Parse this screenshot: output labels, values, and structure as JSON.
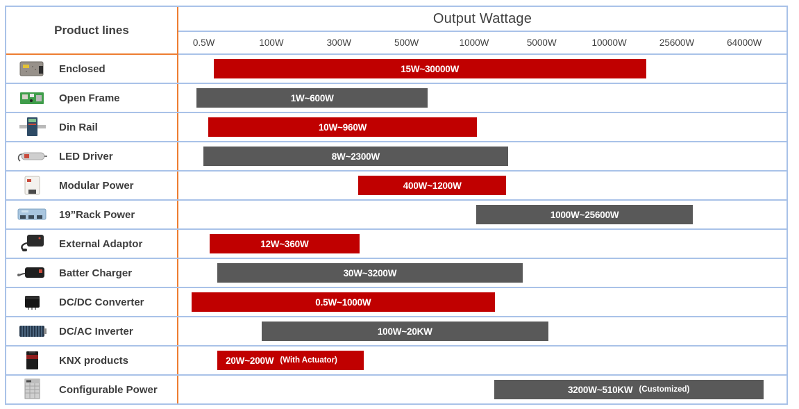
{
  "header": {
    "left_title": "Product lines",
    "right_title": "Output Wattage"
  },
  "colors": {
    "bar_red": "#C00000",
    "bar_gray": "#595959",
    "divider_orange": "#ED7D31",
    "grid_blue": "#A9C2E8",
    "text_dark": "#404040",
    "bar_text_white": "#FFFFFF"
  },
  "chart_data": {
    "type": "bar",
    "orientation": "horizontal-range",
    "title": "Output Wattage",
    "x_axis_label": "Output Wattage",
    "x_ticks": [
      "0.5W",
      "100W",
      "300W",
      "500W",
      "1000W",
      "5000W",
      "10000W",
      "25600W",
      "64000W"
    ],
    "x_scale": "logarithmic-category",
    "grid": "horizontal row separators only",
    "legend": null,
    "rows": [
      {
        "label": "Enclosed",
        "icon": "enclosed-power-supply-icon",
        "range_label": "15W~30000W",
        "min_w": 15,
        "max_w": 30000,
        "note": "",
        "color_name": "red",
        "align": "center",
        "bar": {
          "left_pct": 5.8,
          "width_pct": 71.1
        }
      },
      {
        "label": "Open Frame",
        "icon": "open-frame-psu-icon",
        "range_label": "1W~600W",
        "min_w": 1,
        "max_w": 600,
        "note": "",
        "color_name": "gray",
        "align": "center",
        "bar": {
          "left_pct": 3.0,
          "width_pct": 38.0
        }
      },
      {
        "label": "Din Rail",
        "icon": "din-rail-psu-icon",
        "range_label": "10W~960W",
        "min_w": 10,
        "max_w": 960,
        "note": "",
        "color_name": "red",
        "align": "center",
        "bar": {
          "left_pct": 4.9,
          "width_pct": 44.2
        }
      },
      {
        "label": "LED Driver",
        "icon": "led-driver-icon",
        "range_label": "8W~2300W",
        "min_w": 8,
        "max_w": 2300,
        "note": "",
        "color_name": "gray",
        "align": "center",
        "bar": {
          "left_pct": 4.1,
          "width_pct": 50.1
        }
      },
      {
        "label": "Modular Power",
        "icon": "modular-power-icon",
        "range_label": "400W~1200W",
        "min_w": 400,
        "max_w": 1200,
        "note": "",
        "color_name": "red",
        "align": "center",
        "bar": {
          "left_pct": 29.6,
          "width_pct": 24.3
        }
      },
      {
        "label": "19”Rack Power",
        "icon": "rack-power-icon",
        "range_label": "1000W~25600W",
        "min_w": 1000,
        "max_w": 25600,
        "note": "",
        "color_name": "gray",
        "align": "center",
        "bar": {
          "left_pct": 49.0,
          "width_pct": 35.6
        }
      },
      {
        "label": "External Adaptor",
        "icon": "external-adaptor-icon",
        "range_label": "12W~360W",
        "min_w": 12,
        "max_w": 360,
        "note": "",
        "color_name": "red",
        "align": "center",
        "bar": {
          "left_pct": 5.1,
          "width_pct": 24.7
        }
      },
      {
        "label": "Batter Charger",
        "icon": "battery-charger-icon",
        "range_label": "30W~3200W",
        "min_w": 30,
        "max_w": 3200,
        "note": "",
        "color_name": "gray",
        "align": "center",
        "bar": {
          "left_pct": 6.4,
          "width_pct": 50.2
        }
      },
      {
        "label": "DC/DC Converter",
        "icon": "dcdc-converter-icon",
        "range_label": "0.5W~1000W",
        "min_w": 0.5,
        "max_w": 1000,
        "note": "",
        "color_name": "red",
        "align": "center",
        "bar": {
          "left_pct": 2.2,
          "width_pct": 49.8
        }
      },
      {
        "label": "DC/AC Inverter",
        "icon": "dcac-inverter-icon",
        "range_label": "100W~20KW",
        "min_w": 100,
        "max_w": 20000,
        "note": "",
        "color_name": "gray",
        "align": "center",
        "bar": {
          "left_pct": 13.7,
          "width_pct": 47.1
        }
      },
      {
        "label": "KNX products",
        "icon": "knx-product-icon",
        "range_label": "20W~200W",
        "min_w": 20,
        "max_w": 200,
        "note": "(With Actuator)",
        "color_name": "red",
        "align": "left",
        "bar": {
          "left_pct": 6.4,
          "width_pct": 24.1
        }
      },
      {
        "label": "Configurable Power",
        "icon": "configurable-power-icon",
        "range_label": "3200W~510KW",
        "min_w": 3200,
        "max_w": 510000,
        "note": "(Customized)",
        "color_name": "gray",
        "align": "center",
        "bar": {
          "left_pct": 51.9,
          "width_pct": 44.3
        }
      }
    ]
  }
}
